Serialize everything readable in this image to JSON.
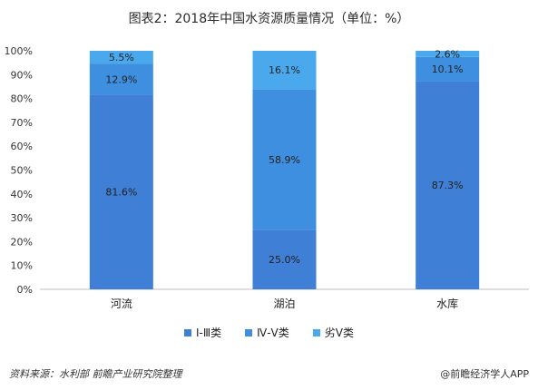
{
  "title": "图表2：2018年中国水资源质量情况（单位：%）",
  "colors": {
    "series": [
      "#3f7fd6",
      "#3f8fe0",
      "#4aa8ec"
    ],
    "axis": "#bfbfbf"
  },
  "chart_data": {
    "type": "bar",
    "stacked": true,
    "title": "图表2：2018年中国水资源质量情况（单位：%）",
    "categories": [
      "河流",
      "湖泊",
      "水库"
    ],
    "series": [
      {
        "name": "Ⅰ-Ⅲ类",
        "values": [
          81.6,
          25.0,
          87.3
        ]
      },
      {
        "name": "Ⅳ-Ⅴ类",
        "values": [
          12.9,
          58.9,
          10.1
        ]
      },
      {
        "name": "劣Ⅴ类",
        "values": [
          5.5,
          16.1,
          2.6
        ]
      }
    ],
    "data_labels": [
      [
        "81.6%",
        "25.0%",
        "87.3%"
      ],
      [
        "12.9%",
        "58.9%",
        "10.1%"
      ],
      [
        "5.5%",
        "16.1%",
        "2.6%"
      ]
    ],
    "y_ticks": [
      "0%",
      "10%",
      "20%",
      "30%",
      "40%",
      "50%",
      "60%",
      "70%",
      "80%",
      "90%",
      "100%"
    ],
    "ylim": [
      0,
      100
    ],
    "grid": false,
    "legend_position": "bottom"
  },
  "footer": {
    "source": "资料来源：水利部 前瞻产业研究院整理",
    "brand": "@前瞻经济学人APP"
  }
}
